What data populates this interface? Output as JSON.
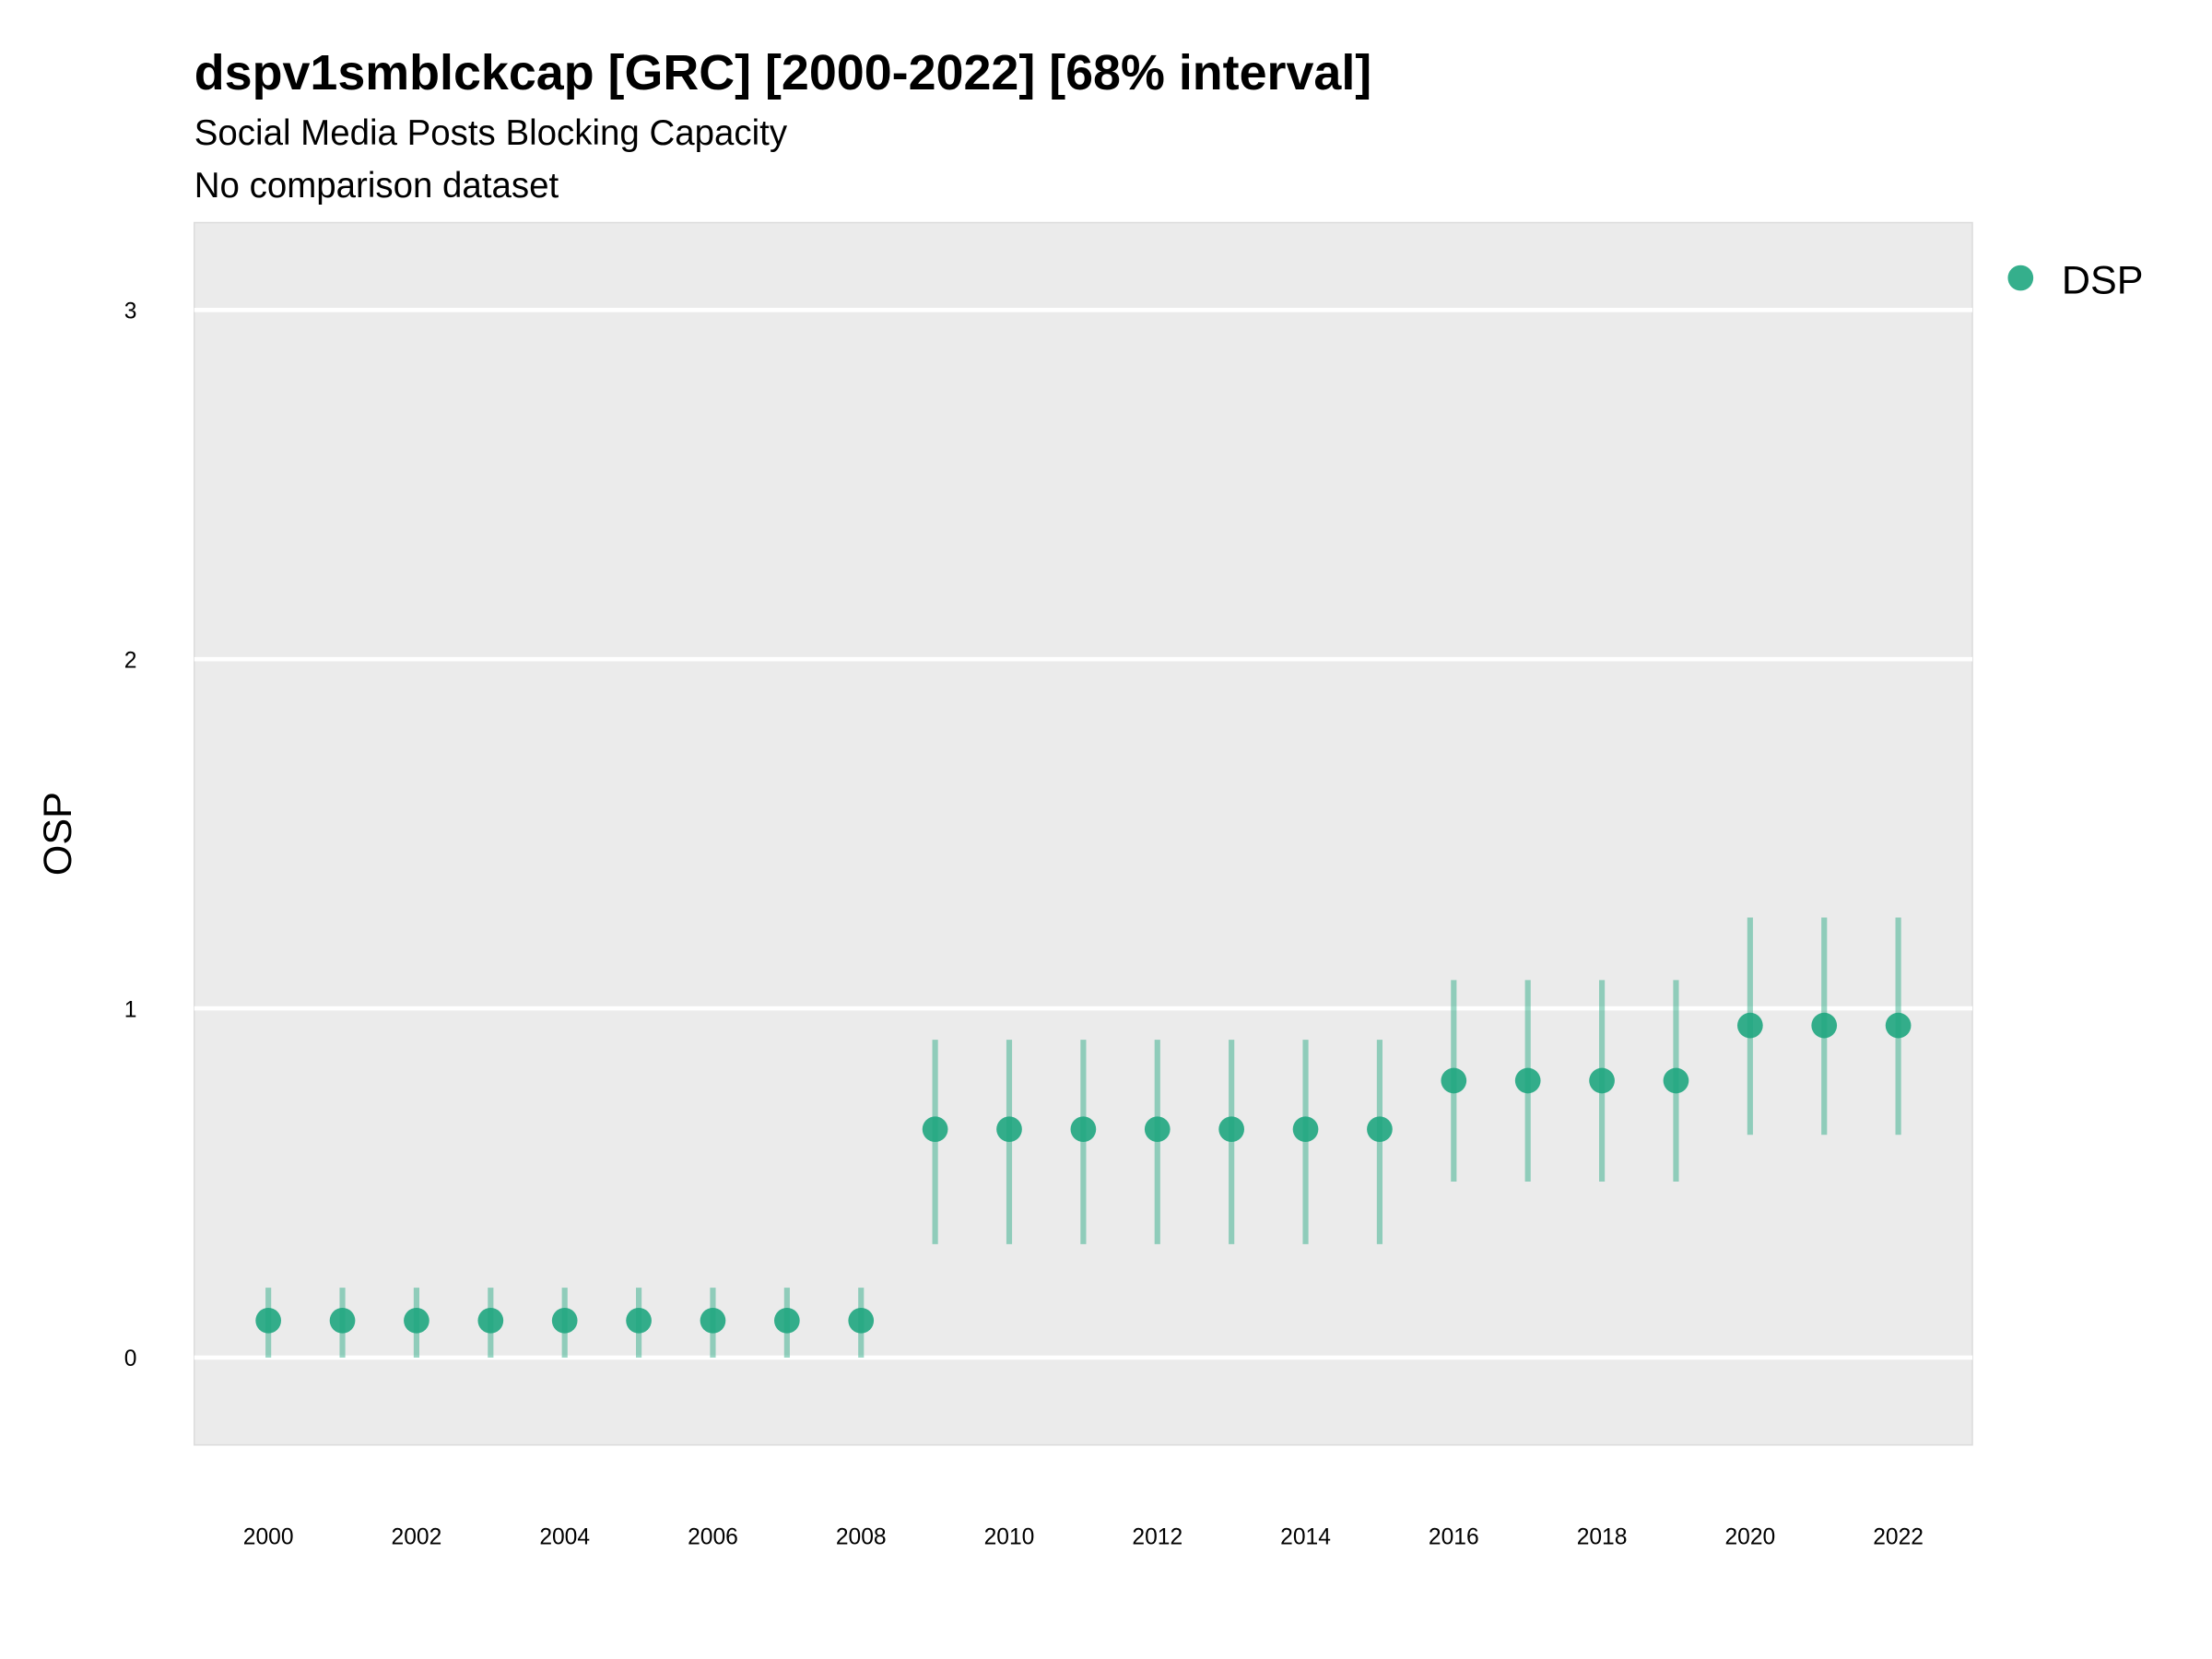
{
  "chart_data": {
    "type": "scatter",
    "title": "dspv1smblckcap [GRC] [2000-2022] [68% interval]",
    "subtitle": "Social Media Posts Blocking Capacity",
    "caption": "No comparison dataset",
    "xlabel": "",
    "ylabel": "OSP",
    "xlim": [
      1999,
      2023
    ],
    "ylim": [
      -0.25,
      3.25
    ],
    "x_ticks": [
      2000,
      2002,
      2004,
      2006,
      2008,
      2010,
      2012,
      2014,
      2016,
      2018,
      2020,
      2022
    ],
    "y_ticks": [
      0,
      1,
      2,
      3
    ],
    "grid": true,
    "legend_position": "right",
    "series": [
      {
        "name": "DSP",
        "color": "#1fa67f",
        "x": [
          2000,
          2001,
          2002,
          2003,
          2004,
          2005,
          2006,
          2007,
          2008,
          2009,
          2010,
          2011,
          2012,
          2013,
          2014,
          2015,
          2016,
          2017,
          2018,
          2019,
          2020,
          2021,
          2022
        ],
        "y": [
          0.106,
          0.106,
          0.106,
          0.106,
          0.106,
          0.106,
          0.106,
          0.106,
          0.106,
          0.654,
          0.654,
          0.654,
          0.654,
          0.654,
          0.654,
          0.654,
          0.793,
          0.793,
          0.793,
          0.793,
          0.951,
          0.951,
          0.951
        ],
        "lower": [
          0,
          0,
          0,
          0,
          0,
          0,
          0,
          0,
          0,
          0.325,
          0.325,
          0.325,
          0.325,
          0.325,
          0.325,
          0.325,
          0.504,
          0.504,
          0.504,
          0.504,
          0.638,
          0.638,
          0.638
        ],
        "upper": [
          0.2,
          0.2,
          0.2,
          0.2,
          0.2,
          0.2,
          0.2,
          0.2,
          0.2,
          0.91,
          0.91,
          0.91,
          0.91,
          0.91,
          0.91,
          0.91,
          1.081,
          1.081,
          1.081,
          1.081,
          1.26,
          1.26,
          1.26
        ]
      }
    ]
  }
}
